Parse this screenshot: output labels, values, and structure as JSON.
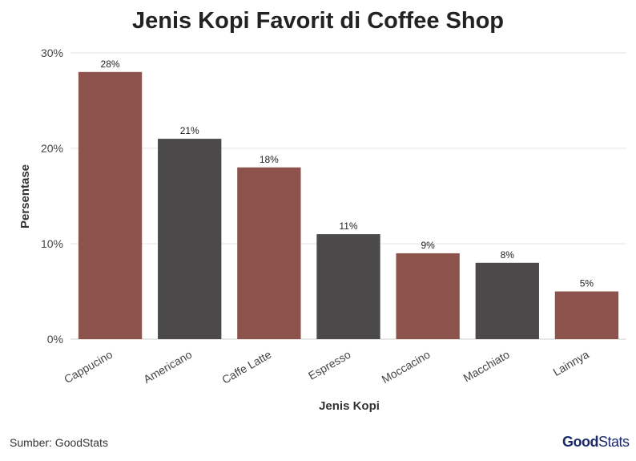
{
  "chart_data": {
    "type": "bar",
    "title": "Jenis Kopi Favorit di Coffee Shop",
    "xlabel": "Jenis Kopi",
    "ylabel": "Persentase",
    "categories": [
      "Cappucino",
      "Americano",
      "Caffe Latte",
      "Espresso",
      "Moccacino",
      "Macchiato",
      "Lainnya"
    ],
    "values": [
      28,
      21,
      18,
      11,
      9,
      8,
      5
    ],
    "data_labels": [
      "28%",
      "21%",
      "18%",
      "11%",
      "9%",
      "8%",
      "5%"
    ],
    "bar_colors": [
      "#8c524b",
      "#4b4949",
      "#8c524b",
      "#4b4949",
      "#8c524b",
      "#4b4949",
      "#8c524b"
    ],
    "ylim": [
      0,
      30
    ],
    "yticks": [
      0,
      10,
      20,
      30
    ],
    "ytick_labels": [
      "0%",
      "10%",
      "20%",
      "30%"
    ],
    "grid": true,
    "legend": "none"
  },
  "footer": {
    "source": "Sumber: GoodStats",
    "logo_good": "Good",
    "logo_stats": "Stats"
  },
  "colors": {
    "accent": "#8c524b",
    "secondary": "#4b4949",
    "logo": "#1c2a6b"
  }
}
